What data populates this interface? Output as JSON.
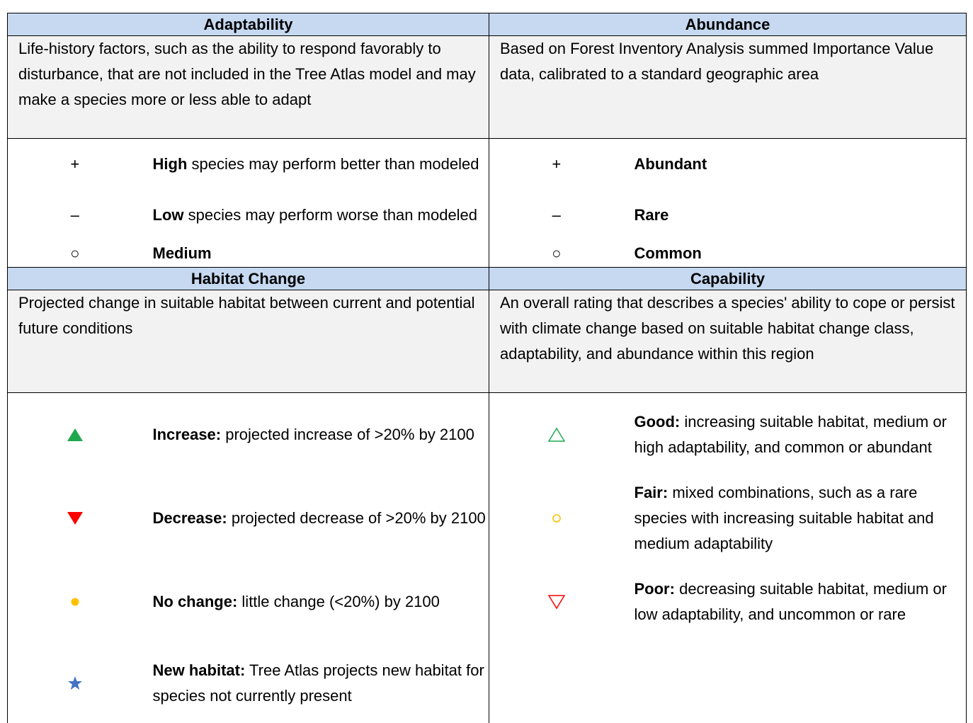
{
  "sections": [
    {
      "columns": [
        {
          "heading": "Adaptability",
          "description": "Life-history factors, such as the ability to respond favorably to disturbance, that are not included in the Tree Atlas model and may make a species more or less able to adapt",
          "items": [
            {
              "symbol": "+",
              "term": "High",
              "text": "species may perform better than modeled"
            },
            {
              "symbol": "–",
              "term": "Low",
              "text": "species may perform worse than modeled"
            },
            {
              "symbol": "○",
              "term": "Medium"
            }
          ]
        },
        {
          "heading": "Abundance",
          "description": "Based on Forest Inventory Analysis summed Importance Value data, calibrated to a standard geographic area",
          "items": [
            {
              "symbol": "+",
              "term": "Abundant"
            },
            {
              "symbol": "–",
              "term": "Rare"
            },
            {
              "symbol": "○",
              "term": "Common"
            }
          ]
        }
      ]
    },
    {
      "columns": [
        {
          "heading": "Habitat Change",
          "description": "Projected change in suitable habitat between current and potential future conditions",
          "items": [
            {
              "term": "Increase:",
              "text": "projected increase of >20% by 2100"
            },
            {
              "term": "Decrease:",
              "text": "projected decrease of >20% by 2100"
            },
            {
              "term": "No change:",
              "text": "little change (<20%) by 2100"
            },
            {
              "term": "New habitat:",
              "text": "Tree Atlas projects new habitat for species not currently present"
            }
          ]
        },
        {
          "heading": "Capability",
          "description": "An overall rating that describes a species' ability to cope or persist with climate change based on suitable habitat change class, adaptability, and abundance within this region",
          "items": [
            {
              "term": "Good:",
              "text": "increasing suitable habitat, medium or high adaptability, and common or abundant"
            },
            {
              "term": "Fair:",
              "text": "mixed combinations, such as a rare species with increasing suitable habitat and medium adaptability"
            },
            {
              "term": "Poor:",
              "text": "decreasing suitable habitat, medium or low adaptability, and uncommon or rare"
            }
          ]
        }
      ]
    }
  ]
}
